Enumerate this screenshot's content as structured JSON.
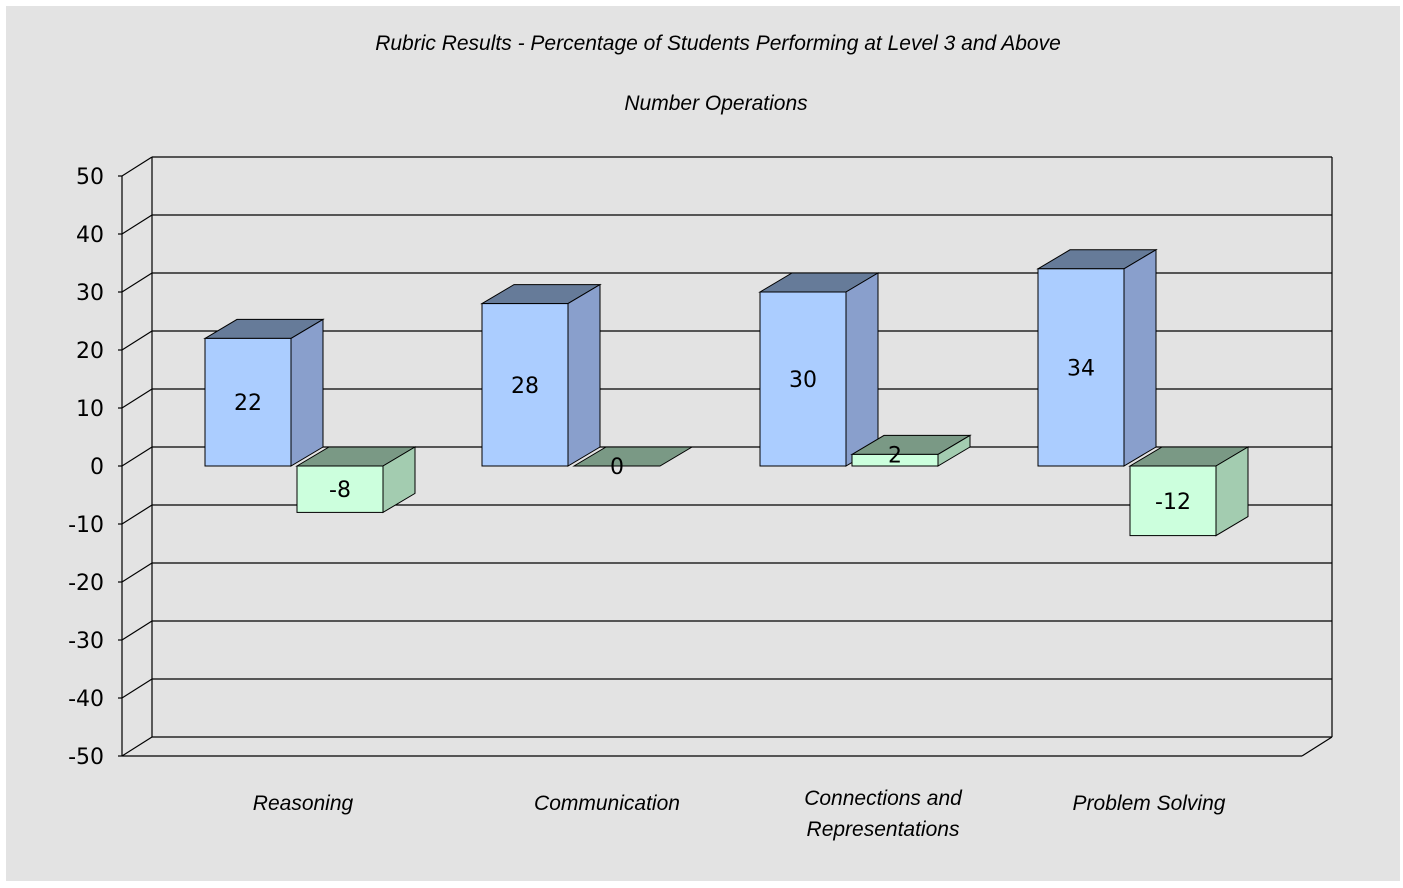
{
  "chart_data": {
    "type": "bar",
    "title": "Rubric Results - Percentage of Students Performing at Level 3 and Above",
    "subtitle": "Number Operations",
    "categories": [
      "Reasoning",
      "Communication",
      "Connections and Representations",
      "Problem Solving"
    ],
    "category_lines": [
      [
        "Reasoning"
      ],
      [
        "Communication"
      ],
      [
        "Connections and",
        "Representations"
      ],
      [
        "Problem Solving"
      ]
    ],
    "series": [
      {
        "values": [
          22,
          28,
          30,
          34
        ],
        "labels": [
          "22",
          "28",
          "30",
          "34"
        ]
      },
      {
        "values": [
          -8,
          0,
          2,
          -12
        ],
        "labels": [
          "-8",
          "0",
          "2",
          "-12"
        ]
      }
    ],
    "ylim": [
      -50,
      50
    ],
    "yticks": [
      50,
      40,
      30,
      20,
      10,
      0,
      -10,
      -20,
      -30,
      -40,
      -50
    ],
    "grid": true,
    "legend": "none",
    "three_d": true
  },
  "colors": {
    "background": "#e3e3e3",
    "series1_front": "#abcdff",
    "series1_top": "#667b99",
    "series1_side": "#899fcc",
    "series2_front": "#ccffdd",
    "series2_top": "#7a9985",
    "series2_side": "#a3ccb0"
  }
}
